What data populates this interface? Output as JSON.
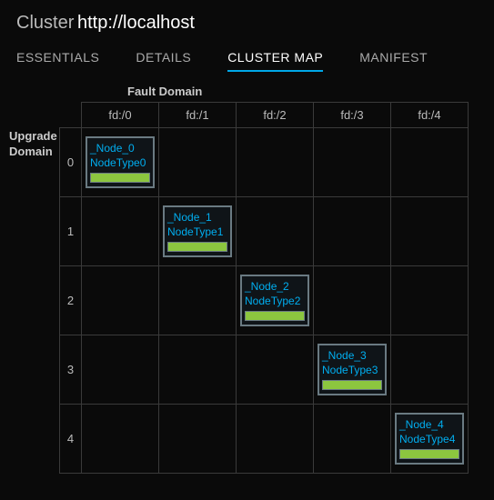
{
  "header": {
    "title_label": "Cluster",
    "url": "http://localhost"
  },
  "tabs": [
    {
      "label": "ESSENTIALS",
      "active": false
    },
    {
      "label": "DETAILS",
      "active": false
    },
    {
      "label": "CLUSTER MAP",
      "active": true
    },
    {
      "label": "MANIFEST",
      "active": false
    }
  ],
  "map": {
    "fault_domain_label": "Fault Domain",
    "upgrade_domain_label": "Upgrade\nDomain",
    "fault_domains": [
      "fd:/0",
      "fd:/1",
      "fd:/2",
      "fd:/3",
      "fd:/4"
    ],
    "upgrade_domains": [
      "0",
      "1",
      "2",
      "3",
      "4"
    ],
    "nodes": [
      {
        "ud": 0,
        "fd": 0,
        "name": "_Node_0",
        "type": "NodeType0",
        "health_color": "#8cc63f"
      },
      {
        "ud": 1,
        "fd": 1,
        "name": "_Node_1",
        "type": "NodeType1",
        "health_color": "#8cc63f"
      },
      {
        "ud": 2,
        "fd": 2,
        "name": "_Node_2",
        "type": "NodeType2",
        "health_color": "#8cc63f"
      },
      {
        "ud": 3,
        "fd": 3,
        "name": "_Node_3",
        "type": "NodeType3",
        "health_color": "#8cc63f"
      },
      {
        "ud": 4,
        "fd": 4,
        "name": "_Node_4",
        "type": "NodeType4",
        "health_color": "#8cc63f"
      }
    ],
    "colors": {
      "accent": "#00a8e8",
      "node_border": "#6a7a82",
      "grid_border": "#3a3a3a",
      "link_text": "#00aef0"
    }
  }
}
